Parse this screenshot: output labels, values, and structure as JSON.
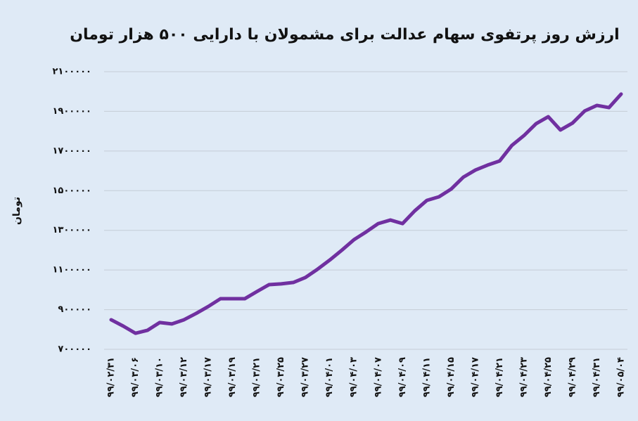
{
  "chart_data": {
    "type": "line",
    "title": "ارزش روز پرتفوی سهام عدالت برای مشمولان با دارایی ۵۰۰ هزار تومان",
    "y_label": "تومان",
    "categories": [
      "۹۹/۰۲/۳۱",
      null,
      "۹۹/۰۳/۰۶",
      null,
      "۹۹/۰۳/۱۰",
      null,
      "۹۹/۰۳/۱۲",
      null,
      "۹۹/۰۳/۱۷",
      null,
      "۹۹/۰۳/۱۹",
      null,
      "۹۹/۰۳/۲۱",
      null,
      "۹۹/۰۳/۲۵",
      null,
      "۹۹/۰۳/۲۷",
      null,
      "۹۹/۰۴/۰۱",
      null,
      "۹۹/۰۴/۰۳",
      null,
      "۹۹/۰۴/۰۷",
      null,
      "۹۹/۰۴/۰۹",
      null,
      "۹۹/۰۴/۱۱",
      null,
      "۹۹/۰۴/۱۵",
      null,
      "۹۹/۰۴/۱۷",
      null,
      "۹۹/۰۴/۲۱",
      null,
      "۹۹/۰۴/۲۳",
      null,
      "۹۹/۰۴/۲۵",
      null,
      "۹۹/۰۴/۲۹",
      null,
      "۹۹/۰۴/۳۱",
      null,
      "۹۹/۰۵/۰۴"
    ],
    "values": [
      849000,
      817000,
      781000,
      796000,
      835000,
      828000,
      849000,
      881000,
      916000,
      955000,
      955000,
      955000,
      991000,
      1026000,
      1030000,
      1037000,
      1062000,
      1104000,
      1150000,
      1200000,
      1253000,
      1292000,
      1334000,
      1352000,
      1334000,
      1398000,
      1451000,
      1469000,
      1508000,
      1568000,
      1604000,
      1629000,
      1650000,
      1728000,
      1778000,
      1838000,
      1873000,
      1806000,
      1841000,
      1902000,
      1930000,
      1919000,
      1987000
    ],
    "color": "#7030a0",
    "ylim": [
      700000,
      2100000
    ],
    "yticks": [
      {
        "value": 700000,
        "label": "۷۰۰۰۰۰"
      },
      {
        "value": 900000,
        "label": "۹۰۰۰۰۰"
      },
      {
        "value": 1100000,
        "label": "۱۱۰۰۰۰۰"
      },
      {
        "value": 1300000,
        "label": "۱۳۰۰۰۰۰"
      },
      {
        "value": 1500000,
        "label": "۱۵۰۰۰۰۰"
      },
      {
        "value": 1700000,
        "label": "۱۷۰۰۰۰۰"
      },
      {
        "value": 1900000,
        "label": "۱۹۰۰۰۰۰"
      },
      {
        "value": 2100000,
        "label": "۲۱۰۰۰۰۰"
      }
    ],
    "grid": true
  }
}
